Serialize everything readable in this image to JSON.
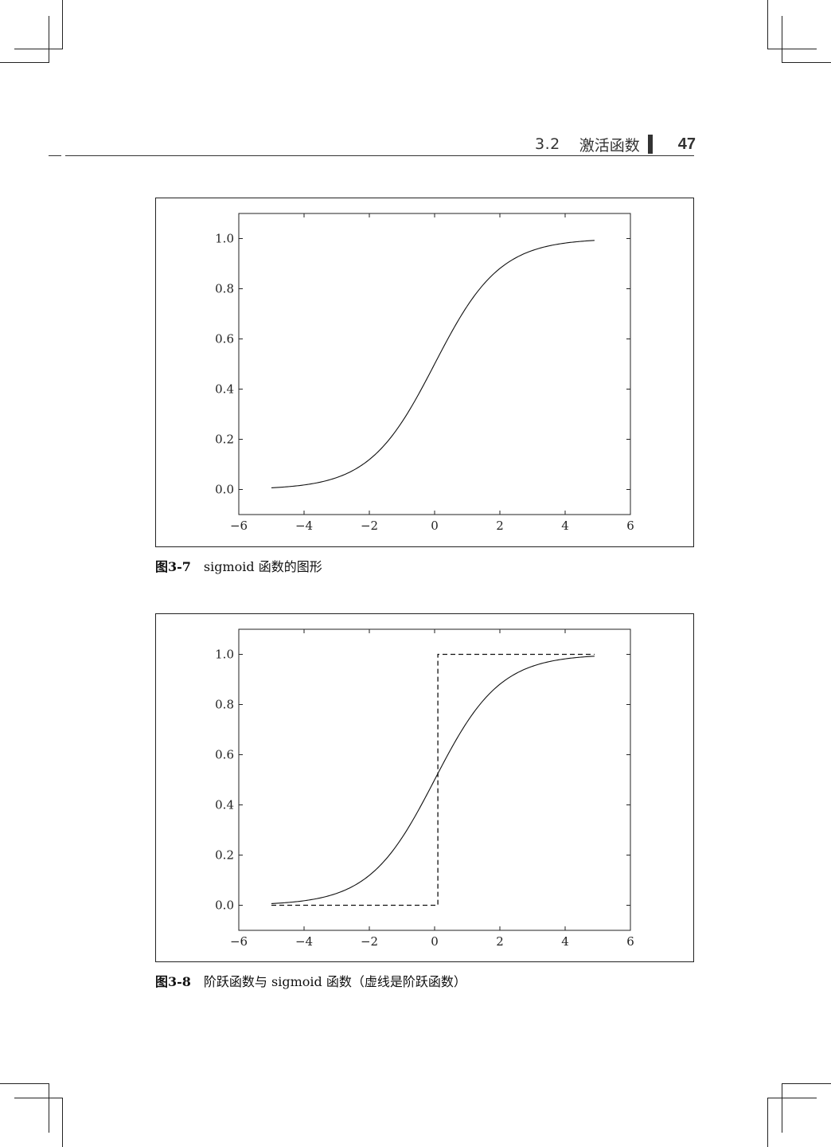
{
  "header": {
    "section_number": "3.2",
    "section_title": "激活函数",
    "page_number": "47"
  },
  "figures": [
    {
      "label": "图3-7",
      "caption": "sigmoid 函数的图形",
      "chart_data": {
        "type": "line",
        "title": "",
        "xlabel": "",
        "ylabel": "",
        "xlim": [
          -6,
          6
        ],
        "ylim": [
          -0.1,
          1.1
        ],
        "x_ticks": [
          -6,
          -4,
          -2,
          0,
          2,
          4,
          6
        ],
        "x_tick_labels": [
          "−6",
          "−4",
          "−2",
          "0",
          "2",
          "4",
          "6"
        ],
        "y_ticks": [
          0.0,
          0.2,
          0.4,
          0.6,
          0.8,
          1.0
        ],
        "y_tick_labels": [
          "0.0",
          "0.2",
          "0.4",
          "0.6",
          "0.8",
          "1.0"
        ],
        "grid": false,
        "series": [
          {
            "style": "solid",
            "x": [
              -5.0,
              -4.5,
              -4.0,
              -3.5,
              -3.0,
              -2.5,
              -2.0,
              -1.5,
              -1.0,
              -0.5,
              0.0,
              0.5,
              1.0,
              1.5,
              2.0,
              2.5,
              3.0,
              3.5,
              4.0,
              4.5,
              4.9
            ],
            "y": [
              0.007,
              0.011,
              0.018,
              0.029,
              0.047,
              0.076,
              0.119,
              0.182,
              0.269,
              0.378,
              0.5,
              0.622,
              0.731,
              0.818,
              0.881,
              0.924,
              0.953,
              0.971,
              0.982,
              0.989,
              0.993
            ]
          }
        ]
      }
    },
    {
      "label": "图3-8",
      "caption": "阶跃函数与 sigmoid 函数（虚线是阶跃函数）",
      "chart_data": {
        "type": "line",
        "title": "",
        "xlabel": "",
        "ylabel": "",
        "xlim": [
          -6,
          6
        ],
        "ylim": [
          -0.1,
          1.1
        ],
        "x_ticks": [
          -6,
          -4,
          -2,
          0,
          2,
          4,
          6
        ],
        "x_tick_labels": [
          "−6",
          "−4",
          "−2",
          "0",
          "2",
          "4",
          "6"
        ],
        "y_ticks": [
          0.0,
          0.2,
          0.4,
          0.6,
          0.8,
          1.0
        ],
        "y_tick_labels": [
          "0.0",
          "0.2",
          "0.4",
          "0.6",
          "0.8",
          "1.0"
        ],
        "grid": false,
        "series": [
          {
            "style": "solid",
            "x": [
              -5.0,
              -4.5,
              -4.0,
              -3.5,
              -3.0,
              -2.5,
              -2.0,
              -1.5,
              -1.0,
              -0.5,
              0.0,
              0.5,
              1.0,
              1.5,
              2.0,
              2.5,
              3.0,
              3.5,
              4.0,
              4.5,
              4.9
            ],
            "y": [
              0.007,
              0.011,
              0.018,
              0.029,
              0.047,
              0.076,
              0.119,
              0.182,
              0.269,
              0.378,
              0.5,
              0.622,
              0.731,
              0.818,
              0.881,
              0.924,
              0.953,
              0.971,
              0.982,
              0.989,
              0.993
            ]
          },
          {
            "style": "dashed",
            "x": [
              -5.0,
              0.0,
              0.0,
              0.1,
              0.1,
              4.9
            ],
            "y": [
              0.0,
              0.0,
              0.0,
              0.0,
              1.0,
              1.0
            ]
          }
        ]
      }
    }
  ]
}
